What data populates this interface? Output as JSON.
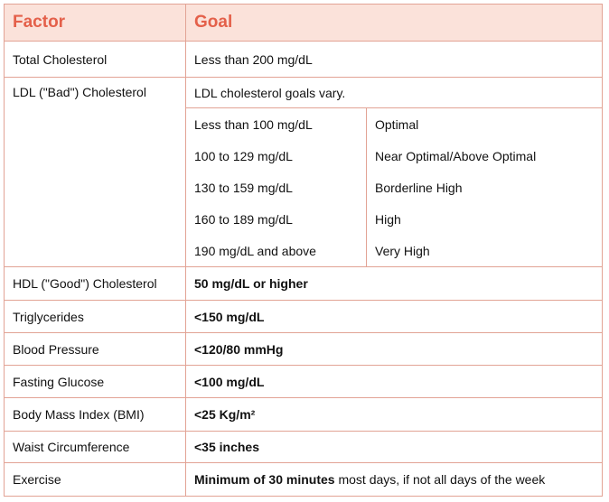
{
  "header": {
    "factor": "Factor",
    "goal": "Goal"
  },
  "rows": [
    {
      "factor": "Total Cholesterol",
      "goal": "Less than 200 mg/dL"
    },
    {
      "factor": "LDL (\"Bad\") Cholesterol",
      "goal": "LDL cholesterol goals vary.",
      "levels": [
        {
          "range": "Less than 100 mg/dL",
          "category": "Optimal"
        },
        {
          "range": "100 to 129 mg/dL",
          "category": "Near Optimal/Above Optimal"
        },
        {
          "range": "130 to 159 mg/dL",
          "category": "Borderline High"
        },
        {
          "range": "160 to 189 mg/dL",
          "category": "High"
        },
        {
          "range": "190 mg/dL and above",
          "category": "Very High"
        }
      ]
    },
    {
      "factor": "HDL (\"Good\") Cholesterol",
      "goal": "50 mg/dL or higher"
    },
    {
      "factor": "Triglycerides",
      "goal": "<150 mg/dL"
    },
    {
      "factor": "Blood Pressure",
      "goal": "<120/80 mmHg"
    },
    {
      "factor": "Fasting Glucose",
      "goal": "<100 mg/dL"
    },
    {
      "factor": "Body Mass Index (BMI)",
      "goal": "<25 Kg/m²"
    },
    {
      "factor": "Waist Circumference",
      "goal": "<35 inches"
    },
    {
      "factor": "Exercise",
      "goal_bold": "Minimum of 30 minutes",
      "goal": "most days, if not all days of the week"
    }
  ]
}
